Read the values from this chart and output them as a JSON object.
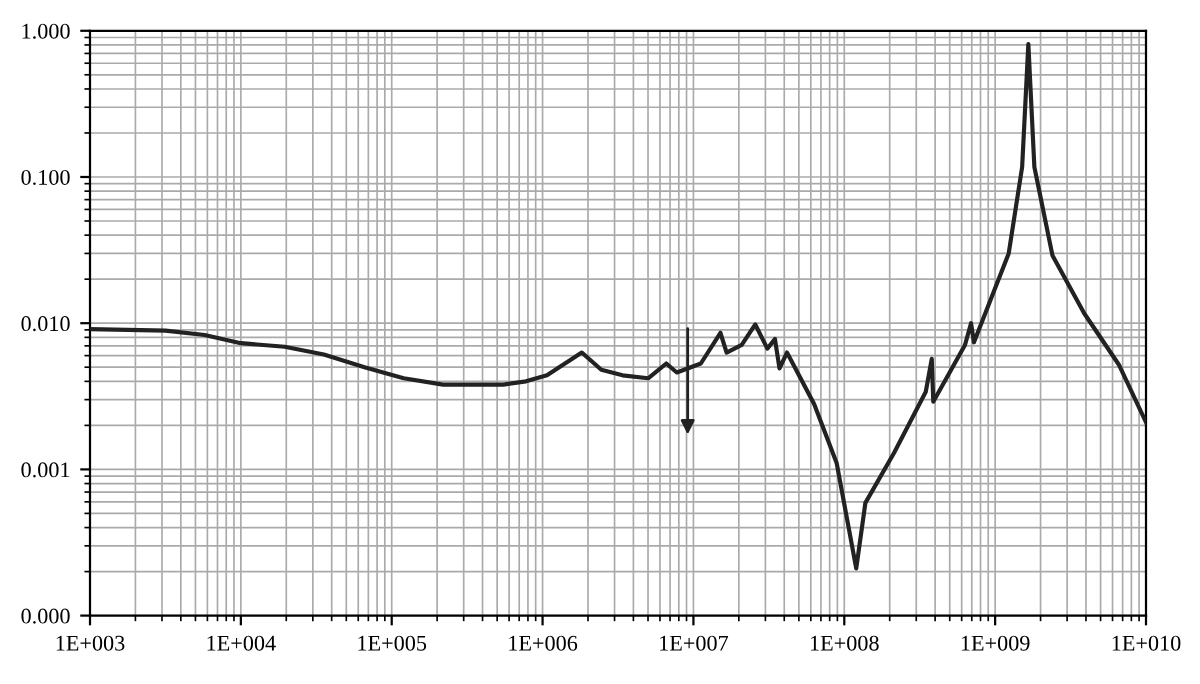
{
  "chart_data": {
    "type": "line",
    "log": "xy",
    "grid": true,
    "marker": "none",
    "line_style": "solid",
    "xlim": [
      1000,
      10000000000
    ],
    "ylim": [
      0.0001,
      1
    ],
    "xticks": [
      {
        "value": 1000,
        "label": "1E+003"
      },
      {
        "value": 10000,
        "label": "1E+004"
      },
      {
        "value": 100000,
        "label": "1E+005"
      },
      {
        "value": 1000000,
        "label": "1E+006"
      },
      {
        "value": 10000000,
        "label": "1E+007"
      },
      {
        "value": 100000000,
        "label": "1E+008"
      },
      {
        "value": 1000000000,
        "label": "1E+009"
      },
      {
        "value": 10000000000,
        "label": "1E+010"
      }
    ],
    "yticks": [
      {
        "value": 0.0001,
        "label": "0.000"
      },
      {
        "value": 0.001,
        "label": "0.001"
      },
      {
        "value": 0.01,
        "label": "0.010"
      },
      {
        "value": 0.1,
        "label": "0.100"
      },
      {
        "value": 1,
        "label": "1.000"
      }
    ],
    "series": [
      {
        "color": "#222222",
        "x": [
          1000,
          3162,
          5754,
          10000,
          19500,
          35500,
          66000,
          120000,
          219000,
          550000,
          776000,
          1070000,
          1820000,
          2450000,
          3390000,
          5010000,
          6610000,
          7760000,
          11200000,
          15100000,
          16600000,
          20900000,
          25700000,
          30900000,
          34700000,
          37200000,
          41700000,
          63100000,
          89100000,
          120000000,
          138000000,
          214000000,
          347000000,
          380000000,
          389000000,
          631000000,
          692000000,
          724000000,
          1230000000,
          1510000000,
          1660000000,
          1820000000,
          2400000000,
          3890000000,
          6610000000,
          10000000000
        ],
        "values": [
          0.0091,
          0.0089,
          0.0083,
          0.0073,
          0.0069,
          0.0061,
          0.005,
          0.0042,
          0.0038,
          0.0038,
          0.004,
          0.0044,
          0.0063,
          0.0048,
          0.0044,
          0.0042,
          0.0053,
          0.0046,
          0.0053,
          0.0086,
          0.0063,
          0.0071,
          0.0098,
          0.0067,
          0.0078,
          0.0049,
          0.0063,
          0.0028,
          0.0011,
          0.00021,
          0.00059,
          0.0013,
          0.0034,
          0.0057,
          0.0029,
          0.0071,
          0.01,
          0.0074,
          0.03,
          0.117,
          0.81,
          0.117,
          0.029,
          0.0117,
          0.0052,
          0.0021
        ]
      }
    ]
  }
}
